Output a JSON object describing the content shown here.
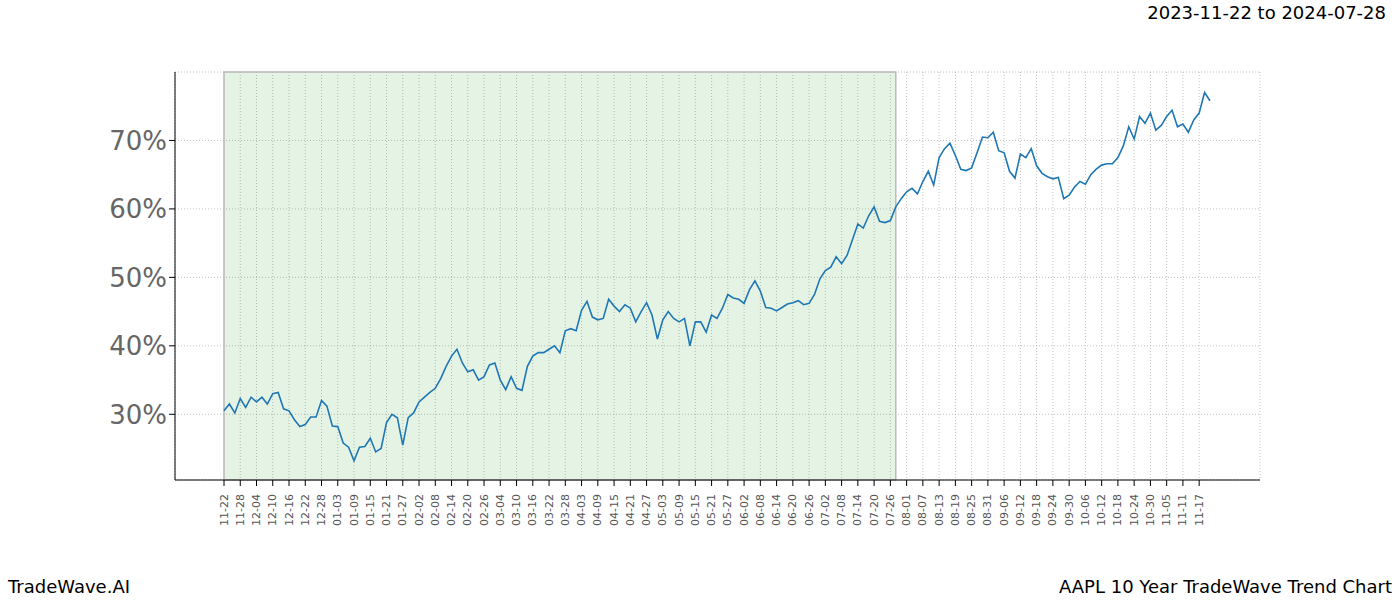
{
  "chart_data": {
    "type": "line",
    "title": "2023-11-22 to 2024-07-28",
    "annotations": [
      "TradeWave.AI",
      "AAPL 10 Year TradeWave Trend Chart"
    ],
    "categories": [
      "11-22",
      null,
      null,
      "11-28",
      null,
      null,
      "12-04",
      null,
      null,
      "12-10",
      null,
      null,
      "12-16",
      null,
      null,
      "12-22",
      null,
      null,
      "12-28",
      null,
      null,
      "01-03",
      null,
      null,
      "01-09",
      null,
      null,
      "01-15",
      null,
      null,
      "01-21",
      null,
      null,
      "01-27",
      null,
      null,
      "02-02",
      null,
      null,
      "02-08",
      null,
      null,
      "02-14",
      null,
      null,
      "02-20",
      null,
      null,
      "02-26",
      null,
      null,
      "03-04",
      null,
      null,
      "03-10",
      null,
      null,
      "03-16",
      null,
      null,
      "03-22",
      null,
      null,
      "03-28",
      null,
      null,
      "04-03",
      null,
      null,
      "04-09",
      null,
      null,
      "04-15",
      null,
      null,
      "04-21",
      null,
      null,
      "04-27",
      null,
      null,
      "05-03",
      null,
      null,
      "05-09",
      null,
      null,
      "05-15",
      null,
      null,
      "05-21",
      null,
      null,
      "05-27",
      null,
      null,
      "06-02",
      null,
      null,
      "06-08",
      null,
      null,
      "06-14",
      null,
      null,
      "06-20",
      null,
      null,
      "06-26",
      null,
      null,
      "07-02",
      null,
      null,
      "07-08",
      null,
      null,
      "07-14",
      null,
      null,
      "07-20",
      null,
      null,
      "07-26",
      null,
      null,
      "08-01",
      null,
      null,
      "08-07",
      null,
      null,
      "08-13",
      null,
      null,
      "08-19",
      null,
      null,
      "08-25",
      null,
      null,
      "08-31",
      null,
      null,
      "09-06",
      null,
      null,
      "09-12",
      null,
      null,
      "09-18",
      null,
      null,
      "09-24",
      null,
      null,
      "09-30",
      null,
      null,
      "10-06",
      null,
      null,
      "10-12",
      null,
      null,
      "10-18",
      null,
      null,
      "10-24",
      null,
      null,
      "10-30",
      null,
      null,
      "11-05",
      null,
      null,
      "11-11",
      null,
      null,
      "11-17",
      null,
      null
    ],
    "values": [
      30.5,
      31.5,
      30.2,
      32.3,
      31,
      32.5,
      31.8,
      32.5,
      31.5,
      33,
      33.2,
      30.8,
      30.5,
      29.2,
      28.2,
      28.5,
      29.6,
      29.6,
      32,
      31.2,
      28.3,
      28.2,
      25.8,
      25.2,
      23.2,
      25.2,
      25.3,
      26.5,
      24.5,
      25,
      28.8,
      30,
      29.5,
      25.5,
      29.5,
      30.2,
      31.8,
      32.5,
      33.2,
      33.8,
      35.2,
      37,
      38.5,
      39.5,
      37.5,
      36.2,
      36.5,
      35,
      35.5,
      37.2,
      37.5,
      35,
      33.6,
      35.5,
      33.8,
      33.5,
      37,
      38.5,
      39,
      39,
      39.5,
      40,
      39,
      42.2,
      42.5,
      42.2,
      45.2,
      46.5,
      44.2,
      43.8,
      44,
      46.8,
      45.8,
      45,
      46,
      45.5,
      43.5,
      45,
      46.3,
      44.5,
      41,
      43.8,
      45,
      44,
      43.5,
      44,
      40,
      43.5,
      43.5,
      42,
      44.5,
      44,
      45.5,
      47.5,
      47,
      46.8,
      46.2,
      48.2,
      49.5,
      48,
      45.6,
      45.5,
      45.1,
      45.6,
      46.1,
      46.3,
      46.6,
      46,
      46.2,
      47.5,
      49.8,
      51,
      51.5,
      53,
      52,
      53.2,
      55.5,
      57.8,
      57.2,
      59,
      60.3,
      58.2,
      58,
      58.3,
      60.3,
      61.5,
      62.5,
      63,
      62.2,
      64,
      65.5,
      63.5,
      67.5,
      68.8,
      69.6,
      67.8,
      65.8,
      65.6,
      66,
      68.2,
      70.5,
      70.4,
      71.2,
      68.5,
      68.2,
      65.5,
      64.5,
      68,
      67.5,
      68.8,
      66.3,
      65.2,
      64.7,
      64.4,
      64.6,
      61.5,
      62,
      63.2,
      64,
      63.6,
      65,
      65.8,
      66.4,
      66.6,
      66.6,
      67.5,
      69.2,
      72,
      70.2,
      73.5,
      72.5,
      74,
      71.5,
      72.2,
      73.5,
      74.4,
      72,
      72.4,
      71.2,
      73,
      74,
      77,
      75.8
    ],
    "color": "#1f77b4",
    "shaded_range": [
      0,
      124
    ],
    "ylim": [
      20.4,
      80
    ],
    "yticks": [
      {
        "value": 30,
        "label": "30%"
      },
      {
        "value": 40,
        "label": "40%"
      },
      {
        "value": 50,
        "label": "50%"
      },
      {
        "value": 60,
        "label": "60%"
      },
      {
        "value": 70,
        "label": "70%"
      }
    ],
    "grid": true
  }
}
